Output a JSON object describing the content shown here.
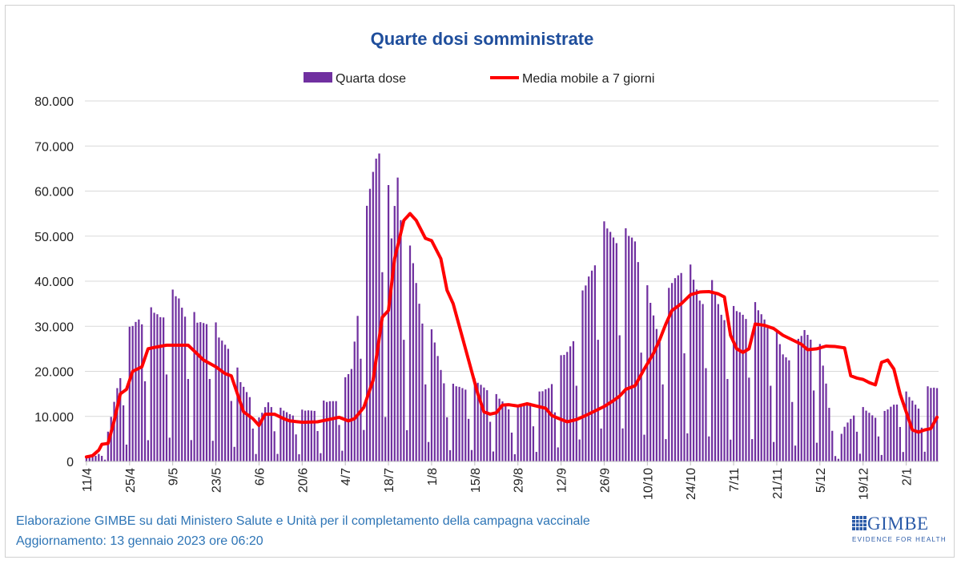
{
  "chart_data": {
    "type": "bar",
    "title": "Quarte dosi somministrate",
    "legend": [
      "Quarta dose",
      "Media mobile a 7 giorni"
    ],
    "legend_position": "top",
    "y_ticks": [
      "0",
      "10.000",
      "20.000",
      "30.000",
      "40.000",
      "50.000",
      "60.000",
      "70.000",
      "80.000"
    ],
    "ylim": [
      0,
      80000
    ],
    "x_ticks": [
      "11/4",
      "25/4",
      "9/5",
      "23/5",
      "6/6",
      "20/6",
      "4/7",
      "18/7",
      "1/8",
      "15/8",
      "29/8",
      "12/9",
      "26/9",
      "10/10",
      "24/10",
      "7/11",
      "21/11",
      "5/12",
      "19/12",
      "2/1"
    ],
    "start_date": "11/4/2022",
    "n_days": 277,
    "grid": true,
    "colors": {
      "bars": "#7030a0",
      "line": "#ff0000",
      "title": "#1f4e9c",
      "footer": "#2e75b6"
    },
    "daily_anchors": [
      [
        0,
        1000
      ],
      [
        3,
        1200
      ],
      [
        6,
        2500
      ],
      [
        10,
        15500
      ],
      [
        14,
        26000
      ],
      [
        17,
        30000
      ],
      [
        20,
        29500
      ],
      [
        24,
        30500
      ],
      [
        27,
        33000
      ],
      [
        30,
        33500
      ],
      [
        33,
        30500
      ],
      [
        36,
        28000
      ],
      [
        40,
        30500
      ],
      [
        43,
        25000
      ],
      [
        46,
        24500
      ],
      [
        50,
        16000
      ],
      [
        53,
        14000
      ],
      [
        56,
        8500
      ],
      [
        59,
        12500
      ],
      [
        62,
        10500
      ],
      [
        66,
        10000
      ],
      [
        70,
        10000
      ],
      [
        74,
        11000
      ],
      [
        78,
        12000
      ],
      [
        82,
        13500
      ],
      [
        86,
        19000
      ],
      [
        89,
        38000
      ],
      [
        92,
        55000
      ],
      [
        94,
        64000
      ],
      [
        96,
        70000
      ],
      [
        99,
        45000
      ],
      [
        101,
        60000
      ],
      [
        103,
        45000
      ],
      [
        106,
        40000
      ],
      [
        109,
        30000
      ],
      [
        113,
        24000
      ],
      [
        116,
        17000
      ],
      [
        119,
        15000
      ],
      [
        122,
        15500
      ],
      [
        126,
        16000
      ],
      [
        130,
        15500
      ],
      [
        133,
        13000
      ],
      [
        136,
        12000
      ],
      [
        139,
        10000
      ],
      [
        143,
        12500
      ],
      [
        147,
        13500
      ],
      [
        150,
        15500
      ],
      [
        153,
        19500
      ],
      [
        156,
        22500
      ],
      [
        159,
        28000
      ],
      [
        163,
        38000
      ],
      [
        166,
        45000
      ],
      [
        169,
        47000
      ],
      [
        172,
        47500
      ],
      [
        175,
        45000
      ],
      [
        178,
        46500
      ],
      [
        182,
        34000
      ],
      [
        186,
        26000
      ],
      [
        190,
        36000
      ],
      [
        193,
        41000
      ],
      [
        196,
        38000
      ],
      [
        199,
        34000
      ],
      [
        203,
        35000
      ],
      [
        206,
        31000
      ],
      [
        210,
        30000
      ],
      [
        213,
        31000
      ],
      [
        216,
        31000
      ],
      [
        220,
        30000
      ],
      [
        223,
        27000
      ],
      [
        226,
        22000
      ],
      [
        230,
        22000
      ],
      [
        233,
        27000
      ],
      [
        237,
        26000
      ],
      [
        240,
        16000
      ],
      [
        243,
        2000
      ],
      [
        246,
        7000
      ],
      [
        250,
        11000
      ],
      [
        254,
        10000
      ],
      [
        258,
        9000
      ],
      [
        262,
        12000
      ],
      [
        266,
        13500
      ],
      [
        270,
        11500
      ],
      [
        273,
        14500
      ],
      [
        276,
        15500
      ]
    ],
    "weekday_factor": [
      1.15,
      1.1,
      1.08,
      1.05,
      1.02,
      0.6,
      0.16
    ],
    "moving_avg_anchors": [
      [
        0,
        1000
      ],
      [
        2,
        1300
      ],
      [
        4,
        2500
      ],
      [
        5,
        3800
      ],
      [
        7,
        4000
      ],
      [
        9,
        9000
      ],
      [
        11,
        15000
      ],
      [
        13,
        16000
      ],
      [
        15,
        20000
      ],
      [
        18,
        21000
      ],
      [
        20,
        25000
      ],
      [
        22,
        25300
      ],
      [
        26,
        25800
      ],
      [
        33,
        25800
      ],
      [
        35,
        24500
      ],
      [
        38,
        22500
      ],
      [
        42,
        21000
      ],
      [
        45,
        19500
      ],
      [
        47,
        19000
      ],
      [
        49,
        15000
      ],
      [
        51,
        11000
      ],
      [
        54,
        9500
      ],
      [
        56,
        8000
      ],
      [
        58,
        10500
      ],
      [
        61,
        10500
      ],
      [
        64,
        9500
      ],
      [
        66,
        9000
      ],
      [
        70,
        8700
      ],
      [
        75,
        8800
      ],
      [
        80,
        9500
      ],
      [
        82,
        9800
      ],
      [
        85,
        9000
      ],
      [
        87,
        9500
      ],
      [
        90,
        12000
      ],
      [
        93,
        18000
      ],
      [
        96,
        32000
      ],
      [
        98,
        33500
      ],
      [
        100,
        45000
      ],
      [
        103,
        53500
      ],
      [
        105,
        55000
      ],
      [
        107,
        53500
      ],
      [
        110,
        49500
      ],
      [
        112,
        49000
      ],
      [
        115,
        45000
      ],
      [
        117,
        38000
      ],
      [
        119,
        35000
      ],
      [
        121,
        30000
      ],
      [
        123,
        25000
      ],
      [
        125,
        20000
      ],
      [
        127,
        15000
      ],
      [
        129,
        11000
      ],
      [
        131,
        10500
      ],
      [
        133,
        10800
      ],
      [
        135,
        12500
      ],
      [
        137,
        12600
      ],
      [
        140,
        12300
      ],
      [
        143,
        12800
      ],
      [
        146,
        12300
      ],
      [
        149,
        11800
      ],
      [
        151,
        10200
      ],
      [
        153,
        9600
      ],
      [
        156,
        8800
      ],
      [
        159,
        9300
      ],
      [
        162,
        10200
      ],
      [
        165,
        11200
      ],
      [
        168,
        12200
      ],
      [
        171,
        13500
      ],
      [
        173,
        14500
      ],
      [
        175,
        16000
      ],
      [
        178,
        16800
      ],
      [
        181,
        20500
      ],
      [
        184,
        24000
      ],
      [
        186,
        27000
      ],
      [
        188,
        30500
      ],
      [
        190,
        33500
      ],
      [
        193,
        35000
      ],
      [
        196,
        37000
      ],
      [
        199,
        37600
      ],
      [
        202,
        37700
      ],
      [
        205,
        37200
      ],
      [
        207,
        36500
      ],
      [
        209,
        28000
      ],
      [
        211,
        25000
      ],
      [
        213,
        24200
      ],
      [
        215,
        25000
      ],
      [
        217,
        30500
      ],
      [
        220,
        30200
      ],
      [
        223,
        29500
      ],
      [
        226,
        28000
      ],
      [
        229,
        27000
      ],
      [
        232,
        26000
      ],
      [
        234,
        24800
      ],
      [
        237,
        25000
      ],
      [
        240,
        25600
      ],
      [
        243,
        25500
      ],
      [
        246,
        25200
      ],
      [
        248,
        19000
      ],
      [
        250,
        18500
      ],
      [
        252,
        18200
      ],
      [
        254,
        17500
      ],
      [
        256,
        17000
      ],
      [
        258,
        22000
      ],
      [
        260,
        22500
      ],
      [
        262,
        20500
      ],
      [
        264,
        15000
      ],
      [
        266,
        11000
      ],
      [
        268,
        7000
      ],
      [
        270,
        6500
      ],
      [
        272,
        7000
      ],
      [
        274,
        7300
      ],
      [
        276,
        9800
      ]
    ]
  },
  "footer": {
    "line1": "Elaborazione GIMBE su dati Ministero Salute e Unità per il completamento della campagna vaccinale",
    "line2": "Aggiornamento: 13 gennaio 2023 ore 06:20"
  },
  "logo": {
    "name": "GIMBE",
    "tagline": "EVIDENCE FOR HEALTH",
    "icon": "gimbe-grid-icon"
  }
}
